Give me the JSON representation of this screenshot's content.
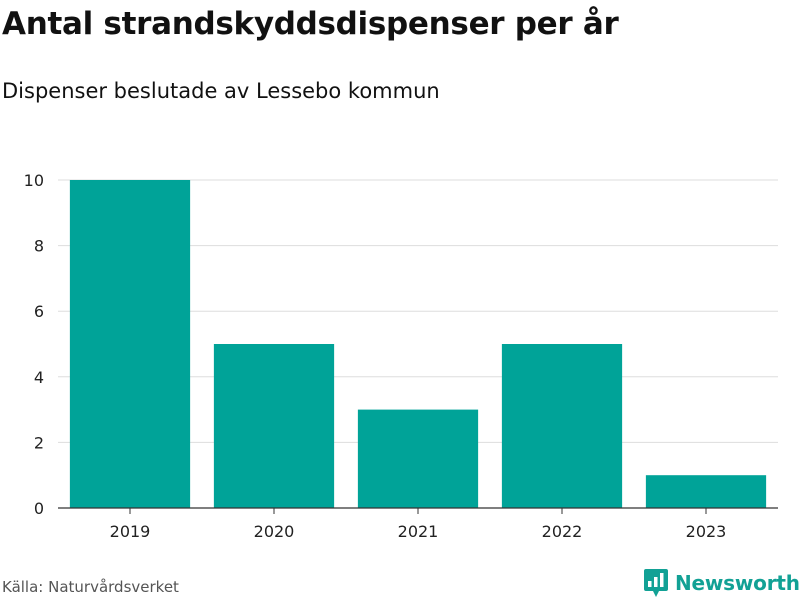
{
  "header": {
    "title": "Antal strandskyddsdispenser per år",
    "subtitle": "Dispenser beslutade av Lessebo kommun"
  },
  "footer": {
    "source": "Källa: Naturvårdsverket",
    "brand": "Newsworthy"
  },
  "colors": {
    "bar": "#00a398",
    "grid": "#dddddd",
    "brand": "#12a195"
  },
  "chart_data": {
    "type": "bar",
    "title": "Antal strandskyddsdispenser per år",
    "subtitle": "Dispenser beslutade av Lessebo kommun",
    "categories": [
      "2019",
      "2020",
      "2021",
      "2022",
      "2023"
    ],
    "values": [
      10,
      5,
      3,
      5,
      1
    ],
    "xlabel": "",
    "ylabel": "",
    "ylim": [
      0,
      10
    ],
    "yticks": [
      0,
      2,
      4,
      6,
      8,
      10
    ],
    "grid": true,
    "legend": "none"
  }
}
